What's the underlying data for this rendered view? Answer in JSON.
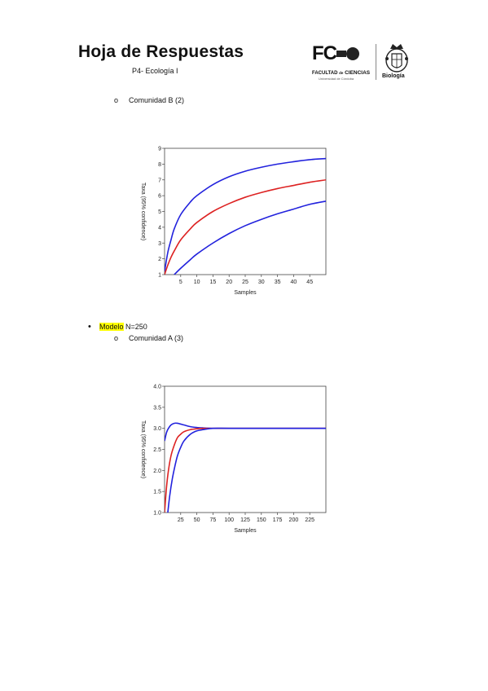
{
  "header": {
    "title": "Hoja de Respuestas",
    "subtitle": "P4- Ecología I",
    "fc_logo_text": "FC",
    "faculty_prefix": "FACULTAD",
    "faculty_mid": "de",
    "faculty_name": "CIENCIAS",
    "university": "Universidad de Córdoba",
    "bio_label": "Biología"
  },
  "sections": {
    "comunidad_b": {
      "marker": "o",
      "label": "Comunidad B (2)"
    },
    "modelo": {
      "marker": "•",
      "highlight": "Modelo",
      "rest": " N=250"
    },
    "comunidad_a": {
      "marker": "o",
      "label": "Comunidad A (3)"
    }
  },
  "chart_data": [
    {
      "type": "line",
      "title": "",
      "xlabel": "Samples",
      "ylabel": "Taxa (95% confidence)",
      "xlim": [
        0,
        50
      ],
      "ylim": [
        1,
        9
      ],
      "xticks": [
        "5",
        "10",
        "15",
        "20",
        "25",
        "30",
        "35",
        "40",
        "45"
      ],
      "xtick_values": [
        5,
        10,
        15,
        20,
        25,
        30,
        35,
        40,
        45
      ],
      "yticks": [
        "1",
        "2",
        "3",
        "4",
        "5",
        "6",
        "7",
        "8",
        "9"
      ],
      "ytick_values": [
        1,
        2,
        3,
        4,
        5,
        6,
        7,
        8,
        9
      ],
      "colors": {
        "upper": "#2222dd",
        "mean": "#dd2222",
        "lower": "#2222dd"
      },
      "series": [
        {
          "x": [
            0,
            1,
            2,
            3,
            5,
            8,
            10,
            15,
            20,
            25,
            30,
            35,
            40,
            45,
            50
          ],
          "y": [
            1.2,
            2.4,
            3.2,
            3.9,
            4.8,
            5.6,
            6.0,
            6.7,
            7.2,
            7.55,
            7.8,
            8.0,
            8.15,
            8.28,
            8.35
          ]
        },
        {
          "x": [
            0,
            1,
            2,
            3,
            5,
            8,
            10,
            15,
            20,
            25,
            30,
            35,
            40,
            45,
            50
          ],
          "y": [
            1.0,
            1.6,
            2.1,
            2.5,
            3.2,
            3.9,
            4.3,
            5.0,
            5.5,
            5.9,
            6.2,
            6.45,
            6.65,
            6.85,
            7.0
          ]
        },
        {
          "x": [
            3,
            5,
            8,
            10,
            15,
            20,
            25,
            30,
            35,
            40,
            45,
            50
          ],
          "y": [
            1.0,
            1.4,
            1.95,
            2.3,
            3.0,
            3.6,
            4.1,
            4.5,
            4.85,
            5.15,
            5.45,
            5.65
          ]
        }
      ]
    },
    {
      "type": "line",
      "title": "",
      "xlabel": "Samples",
      "ylabel": "Taxa (95% confidence)",
      "xlim": [
        0,
        250
      ],
      "ylim": [
        1.0,
        4.0
      ],
      "xticks": [
        "25",
        "50",
        "75",
        "100",
        "125",
        "150",
        "175",
        "200",
        "225"
      ],
      "xtick_values": [
        25,
        50,
        75,
        100,
        125,
        150,
        175,
        200,
        225
      ],
      "yticks": [
        "1.0",
        "1.5",
        "2.0",
        "2.5",
        "3.0",
        "3.5",
        "4.0"
      ],
      "ytick_values": [
        1.0,
        1.5,
        2.0,
        2.5,
        3.0,
        3.5,
        4.0
      ],
      "colors": {
        "upper": "#2222dd",
        "mean": "#dd2222",
        "lower": "#2222dd"
      },
      "series": [
        {
          "x": [
            0,
            3,
            6,
            10,
            15,
            20,
            30,
            40,
            50,
            60,
            75,
            100,
            150,
            200,
            250
          ],
          "y": [
            2.7,
            2.9,
            3.0,
            3.08,
            3.12,
            3.12,
            3.08,
            3.04,
            3.02,
            3.01,
            3.0,
            3.0,
            3.0,
            3.0,
            3.0
          ]
        },
        {
          "x": [
            0,
            3,
            6,
            10,
            15,
            20,
            25,
            30,
            40,
            50,
            60,
            75,
            100,
            150,
            200,
            250
          ],
          "y": [
            1.0,
            1.6,
            2.0,
            2.35,
            2.6,
            2.78,
            2.86,
            2.92,
            2.97,
            2.99,
            3.0,
            3.0,
            3.0,
            3.0,
            3.0,
            3.0
          ]
        },
        {
          "x": [
            5,
            8,
            12,
            16,
            20,
            25,
            30,
            40,
            50,
            60,
            75,
            100,
            150,
            200,
            250
          ],
          "y": [
            1.0,
            1.4,
            1.8,
            2.1,
            2.35,
            2.55,
            2.7,
            2.86,
            2.94,
            2.97,
            3.0,
            3.0,
            3.0,
            3.0,
            3.0
          ]
        }
      ]
    }
  ]
}
